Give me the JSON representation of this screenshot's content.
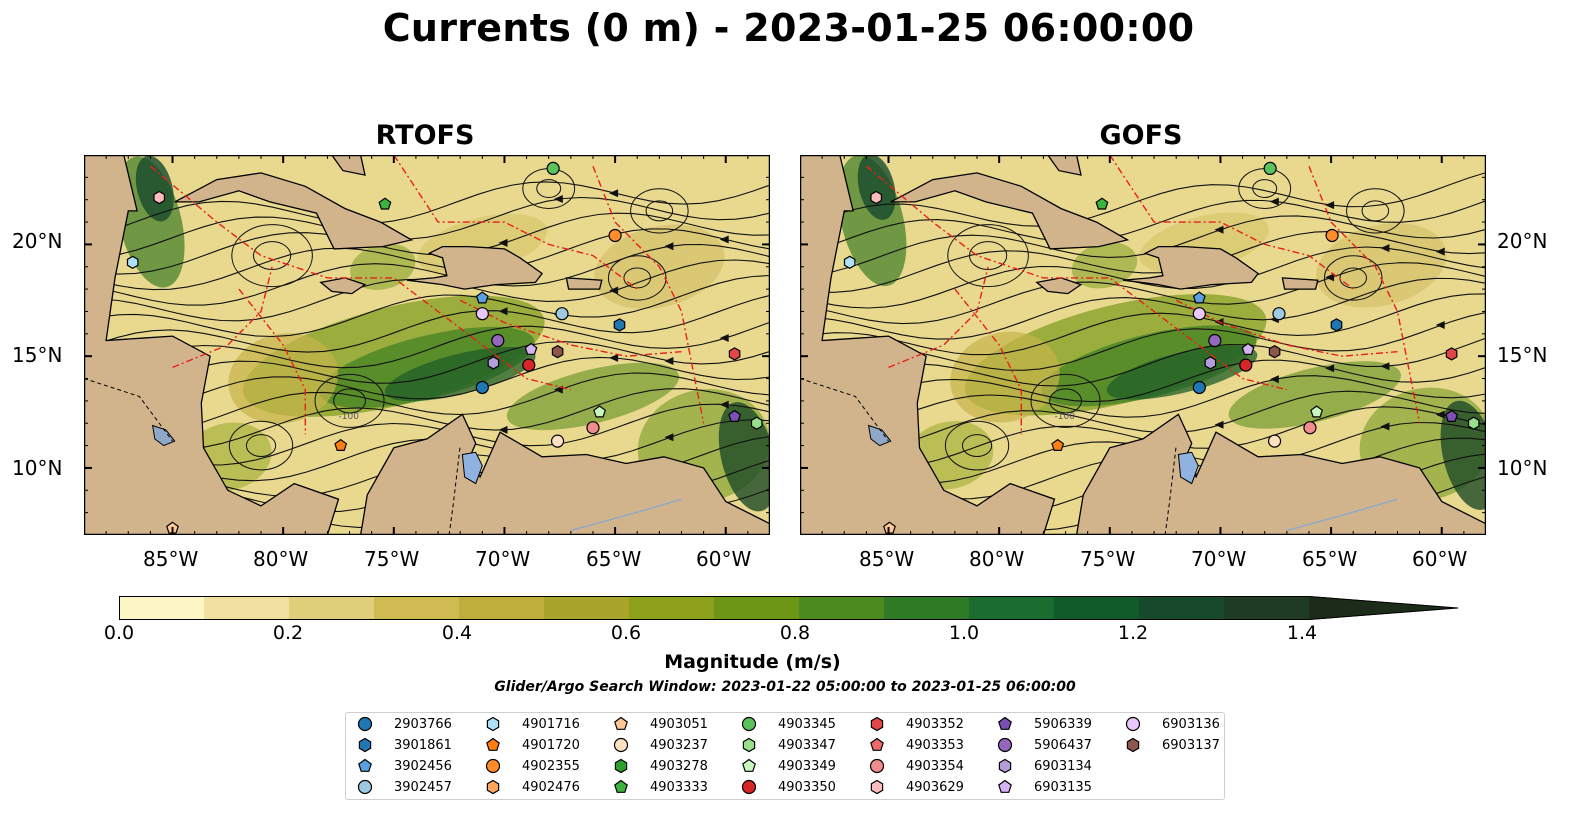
{
  "title": "Currents (0 m) - 2023-01-25 06:00:00",
  "panels": [
    {
      "title": "RTOFS"
    },
    {
      "title": "GOFS"
    }
  ],
  "axes": {
    "x_ticks": [
      "85°W",
      "80°W",
      "75°W",
      "70°W",
      "65°W",
      "60°W"
    ],
    "y_ticks": [
      "20°N",
      "15°N",
      "10°N"
    ],
    "lon_range": [
      -89,
      -58
    ],
    "lat_range": [
      7,
      24
    ],
    "contour_label": "-100"
  },
  "colorbar": {
    "label": "Magnitude (m/s)",
    "ticks": [
      "0.0",
      "0.2",
      "0.4",
      "0.6",
      "0.8",
      "1.0",
      "1.2",
      "1.4"
    ],
    "range": [
      0,
      1.5
    ],
    "extend": "max",
    "colors": [
      "#fcf5c4",
      "#f0e1a0",
      "#e0cf7a",
      "#cfbb52",
      "#bfae3c",
      "#a8a52a",
      "#8da11c",
      "#6d9617",
      "#4b8a1f",
      "#2f7b25",
      "#1a6d2e",
      "#115a2a",
      "#174a2c",
      "#1f3b26",
      "#1d2c1a"
    ]
  },
  "search_window": "Glider/Argo Search Window: 2023-01-22 05:00:00 to 2023-01-25 06:00:00",
  "legend": [
    {
      "id": "2903766",
      "marker": "circle",
      "color": "#1f77b4"
    },
    {
      "id": "3901861",
      "marker": "hexagon",
      "color": "#1f77b4"
    },
    {
      "id": "3902456",
      "marker": "pentagon",
      "color": "#5aa0e0"
    },
    {
      "id": "3902457",
      "marker": "circle",
      "color": "#9ecae1"
    },
    {
      "id": "4901716",
      "marker": "hexagon",
      "color": "#aee0f5"
    },
    {
      "id": "4901720",
      "marker": "pentagon",
      "color": "#ff7f0e"
    },
    {
      "id": "4902355",
      "marker": "circle",
      "color": "#ff8c2a"
    },
    {
      "id": "4902476",
      "marker": "hexagon",
      "color": "#ffa65c"
    },
    {
      "id": "4903051",
      "marker": "pentagon",
      "color": "#ffc896"
    },
    {
      "id": "4903237",
      "marker": "circle",
      "color": "#ffe0c0"
    },
    {
      "id": "4903278",
      "marker": "hexagon",
      "color": "#2ca02c"
    },
    {
      "id": "4903333",
      "marker": "pentagon",
      "color": "#3cb43c"
    },
    {
      "id": "4903345",
      "marker": "circle",
      "color": "#5cc25c"
    },
    {
      "id": "4903347",
      "marker": "hexagon",
      "color": "#98df8a"
    },
    {
      "id": "4903349",
      "marker": "pentagon",
      "color": "#c8f5c0"
    },
    {
      "id": "4903350",
      "marker": "circle",
      "color": "#d62728"
    },
    {
      "id": "4903352",
      "marker": "hexagon",
      "color": "#e04848"
    },
    {
      "id": "4903353",
      "marker": "pentagon",
      "color": "#ec6a6a"
    },
    {
      "id": "4903354",
      "marker": "circle",
      "color": "#f08c8c"
    },
    {
      "id": "4903629",
      "marker": "hexagon",
      "color": "#ffbcbc"
    },
    {
      "id": "5906339",
      "marker": "pentagon",
      "color": "#7b4fb5"
    },
    {
      "id": "5906437",
      "marker": "circle",
      "color": "#9467bd"
    },
    {
      "id": "6903134",
      "marker": "hexagon",
      "color": "#b39ddb"
    },
    {
      "id": "6903135",
      "marker": "pentagon",
      "color": "#d2b4f0"
    },
    {
      "id": "6903136",
      "marker": "circle",
      "color": "#e8c8fa"
    },
    {
      "id": "6903137",
      "marker": "hexagon",
      "color": "#8c564b"
    }
  ],
  "markers": [
    {
      "id": "4903629",
      "lon": -85.6,
      "lat": 22.1
    },
    {
      "id": "4901716",
      "lon": -86.8,
      "lat": 19.2
    },
    {
      "id": "4903333",
      "lon": -75.4,
      "lat": 21.8
    },
    {
      "id": "4903345",
      "lon": -67.8,
      "lat": 23.4
    },
    {
      "id": "4902355",
      "lon": -65.0,
      "lat": 20.4
    },
    {
      "id": "3902456",
      "lon": -71.0,
      "lat": 17.6
    },
    {
      "id": "6903136",
      "lon": -71.0,
      "lat": 16.9
    },
    {
      "id": "3902457",
      "lon": -67.4,
      "lat": 16.9
    },
    {
      "id": "3901861",
      "lon": -64.8,
      "lat": 16.4
    },
    {
      "id": "5906437",
      "lon": -70.3,
      "lat": 15.7
    },
    {
      "id": "6903135",
      "lon": -68.8,
      "lat": 15.3
    },
    {
      "id": "6903137",
      "lon": -67.6,
      "lat": 15.2
    },
    {
      "id": "6903134",
      "lon": -70.5,
      "lat": 14.7
    },
    {
      "id": "4903350",
      "lon": -68.9,
      "lat": 14.6
    },
    {
      "id": "2903766",
      "lon": -71.0,
      "lat": 13.6
    },
    {
      "id": "4903349",
      "lon": -65.7,
      "lat": 12.5
    },
    {
      "id": "4903354",
      "lon": -66.0,
      "lat": 11.8
    },
    {
      "id": "4903237",
      "lon": -67.6,
      "lat": 11.2
    },
    {
      "id": "4901720",
      "lon": -77.4,
      "lat": 11.0
    },
    {
      "id": "4903352",
      "lon": -59.6,
      "lat": 15.1
    },
    {
      "id": "5906339",
      "lon": -59.6,
      "lat": 12.3
    },
    {
      "id": "4903347",
      "lon": -58.6,
      "lat": 12.0
    },
    {
      "id": "4903051",
      "lon": -85.0,
      "lat": 7.3
    }
  ]
}
